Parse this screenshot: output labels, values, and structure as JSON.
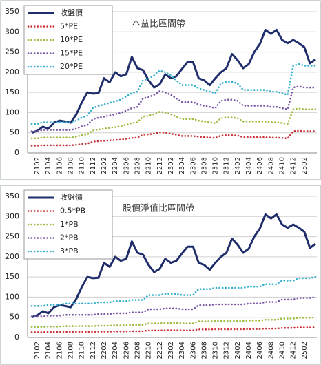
{
  "chart_data": [
    {
      "type": "line",
      "title": "本益比區間帶",
      "categories": [
        null,
        "2102",
        null,
        "2104",
        null,
        "2106",
        null,
        "2108",
        null,
        "2110",
        null,
        "2112",
        null,
        "2202",
        null,
        "2204",
        null,
        "2206",
        null,
        "2208",
        null,
        "2210",
        null,
        "2212",
        null,
        "2302",
        null,
        "2304",
        null,
        "2306",
        null,
        "2308",
        null,
        "2310",
        null,
        "2312",
        null,
        "2402",
        null,
        "2404",
        null,
        "2406",
        null,
        "2408",
        null,
        "2410",
        null,
        "2412",
        null,
        "2502",
        null,
        null
      ],
      "ylim": [
        0,
        350
      ],
      "yticks": [
        0,
        50,
        100,
        150,
        200,
        250,
        300,
        350
      ],
      "grid": true,
      "series": [
        {
          "name": "收盤價",
          "color": "#1f2d6b",
          "values": [
            50,
            55,
            65,
            60,
            75,
            80,
            78,
            75,
            95,
            125,
            150,
            147,
            148,
            185,
            175,
            200,
            190,
            195,
            238,
            210,
            205,
            180,
            162,
            170,
            195,
            185,
            190,
            208,
            225,
            225,
            185,
            180,
            168,
            185,
            200,
            210,
            245,
            230,
            210,
            220,
            250,
            270,
            305,
            295,
            305,
            280,
            272,
            280,
            272,
            262,
            222,
            232
          ]
        },
        {
          "name": "5*PE",
          "color": "#c8343a",
          "values": [
            18,
            18,
            19,
            19,
            19,
            19,
            19,
            19,
            20,
            22,
            23,
            28,
            29,
            30,
            31,
            32,
            33,
            35,
            37,
            38,
            45,
            46,
            48,
            51,
            50,
            48,
            45,
            42,
            42,
            42,
            40,
            39,
            38,
            37,
            43,
            44,
            44,
            43,
            39,
            39,
            39,
            39,
            39,
            38,
            38,
            37,
            36,
            54,
            55,
            54,
            54,
            54
          ]
        },
        {
          "name": "10*PE",
          "color": "#9bbb3b",
          "values": [
            36,
            36,
            38,
            38,
            38,
            38,
            38,
            38,
            40,
            44,
            46,
            56,
            58,
            60,
            62,
            64,
            66,
            70,
            74,
            76,
            90,
            92,
            96,
            102,
            100,
            96,
            90,
            84,
            84,
            84,
            80,
            78,
            76,
            74,
            86,
            88,
            88,
            86,
            78,
            78,
            78,
            78,
            78,
            76,
            76,
            74,
            72,
            108,
            110,
            108,
            108,
            108
          ]
        },
        {
          "name": "15*PE",
          "color": "#7a58a6",
          "values": [
            54,
            54,
            57,
            57,
            57,
            57,
            57,
            57,
            60,
            66,
            69,
            84,
            87,
            90,
            93,
            96,
            99,
            105,
            111,
            114,
            135,
            138,
            144,
            153,
            150,
            144,
            135,
            126,
            126,
            126,
            120,
            117,
            114,
            111,
            129,
            132,
            132,
            129,
            117,
            117,
            117,
            117,
            117,
            114,
            114,
            111,
            108,
            162,
            165,
            162,
            162,
            162
          ]
        },
        {
          "name": "20*PE",
          "color": "#33b0cc",
          "values": [
            72,
            72,
            76,
            76,
            76,
            76,
            76,
            76,
            80,
            88,
            92,
            112,
            116,
            120,
            124,
            128,
            132,
            140,
            148,
            152,
            180,
            184,
            192,
            204,
            200,
            192,
            180,
            168,
            168,
            168,
            160,
            156,
            152,
            148,
            172,
            176,
            176,
            172,
            156,
            156,
            156,
            156,
            156,
            152,
            152,
            148,
            144,
            216,
            220,
            216,
            216,
            216
          ]
        }
      ]
    },
    {
      "type": "line",
      "title": "股價淨值比區間帶",
      "categories": [
        null,
        "2102",
        null,
        "2104",
        null,
        "2106",
        null,
        "2108",
        null,
        "2110",
        null,
        "2112",
        null,
        "2202",
        null,
        "2204",
        null,
        "2206",
        null,
        "2208",
        null,
        "2210",
        null,
        "2212",
        null,
        "2302",
        null,
        "2304",
        null,
        "2306",
        null,
        "2308",
        null,
        "2310",
        null,
        "2312",
        null,
        "2402",
        null,
        "2404",
        null,
        "2406",
        null,
        "2408",
        null,
        "2410",
        null,
        "2412",
        null,
        "2502",
        null,
        null
      ],
      "ylim": [
        0,
        350
      ],
      "yticks": [
        0,
        50,
        100,
        150,
        200,
        250,
        300,
        350
      ],
      "grid": true,
      "series": [
        {
          "name": "收盤價",
          "color": "#1f2d6b",
          "values": [
            50,
            55,
            65,
            60,
            75,
            80,
            78,
            75,
            95,
            125,
            150,
            147,
            148,
            185,
            175,
            200,
            190,
            195,
            238,
            210,
            205,
            180,
            162,
            170,
            195,
            185,
            190,
            208,
            225,
            225,
            185,
            180,
            168,
            185,
            200,
            210,
            245,
            230,
            210,
            220,
            250,
            270,
            305,
            295,
            305,
            280,
            272,
            280,
            272,
            262,
            222,
            232
          ]
        },
        {
          "name": "0.5*PB",
          "color": "#c8343a",
          "values": [
            13,
            13,
            13,
            13.5,
            13.5,
            13.5,
            14,
            14,
            14,
            14,
            14,
            14,
            14.5,
            14.5,
            14.5,
            15,
            15,
            15,
            15.5,
            15.5,
            15.5,
            17.5,
            17.5,
            17.5,
            18,
            18,
            18,
            17.5,
            17.5,
            17.5,
            20,
            20,
            20,
            20.5,
            20.5,
            20.5,
            20.5,
            20.5,
            20.5,
            21,
            21,
            21,
            22,
            22,
            22,
            23.5,
            23.5,
            23.5,
            24.5,
            24.5,
            24.5,
            25
          ]
        },
        {
          "name": "1*PB",
          "color": "#9bbb3b",
          "values": [
            26,
            26,
            26,
            27,
            27,
            27,
            28,
            28,
            28,
            28,
            28,
            28,
            29,
            29,
            29,
            30,
            30,
            30,
            31,
            31,
            31,
            35,
            35,
            35,
            36,
            36,
            36,
            35,
            35,
            35,
            40,
            40,
            40,
            41,
            41,
            41,
            41,
            41,
            41,
            42,
            42,
            42,
            44,
            44,
            44,
            47,
            47,
            47,
            49,
            49,
            49,
            50
          ]
        },
        {
          "name": "2*PB",
          "color": "#7a58a6",
          "values": [
            52,
            52,
            52,
            54,
            54,
            54,
            56,
            56,
            56,
            56,
            56,
            56,
            58,
            58,
            58,
            60,
            60,
            60,
            62,
            62,
            62,
            70,
            70,
            70,
            72,
            72,
            72,
            70,
            70,
            70,
            80,
            80,
            80,
            82,
            82,
            82,
            82,
            82,
            82,
            84,
            84,
            84,
            88,
            88,
            88,
            94,
            94,
            94,
            98,
            98,
            98,
            100
          ]
        },
        {
          "name": "3*PB",
          "color": "#33b0cc",
          "values": [
            78,
            78,
            78,
            81,
            81,
            81,
            84,
            84,
            84,
            84,
            84,
            84,
            87,
            87,
            87,
            90,
            90,
            90,
            93,
            93,
            93,
            105,
            105,
            105,
            108,
            108,
            108,
            105,
            105,
            105,
            120,
            120,
            120,
            123,
            123,
            123,
            123,
            123,
            123,
            126,
            126,
            126,
            132,
            132,
            132,
            141,
            141,
            141,
            147,
            147,
            147,
            150
          ]
        }
      ]
    }
  ]
}
